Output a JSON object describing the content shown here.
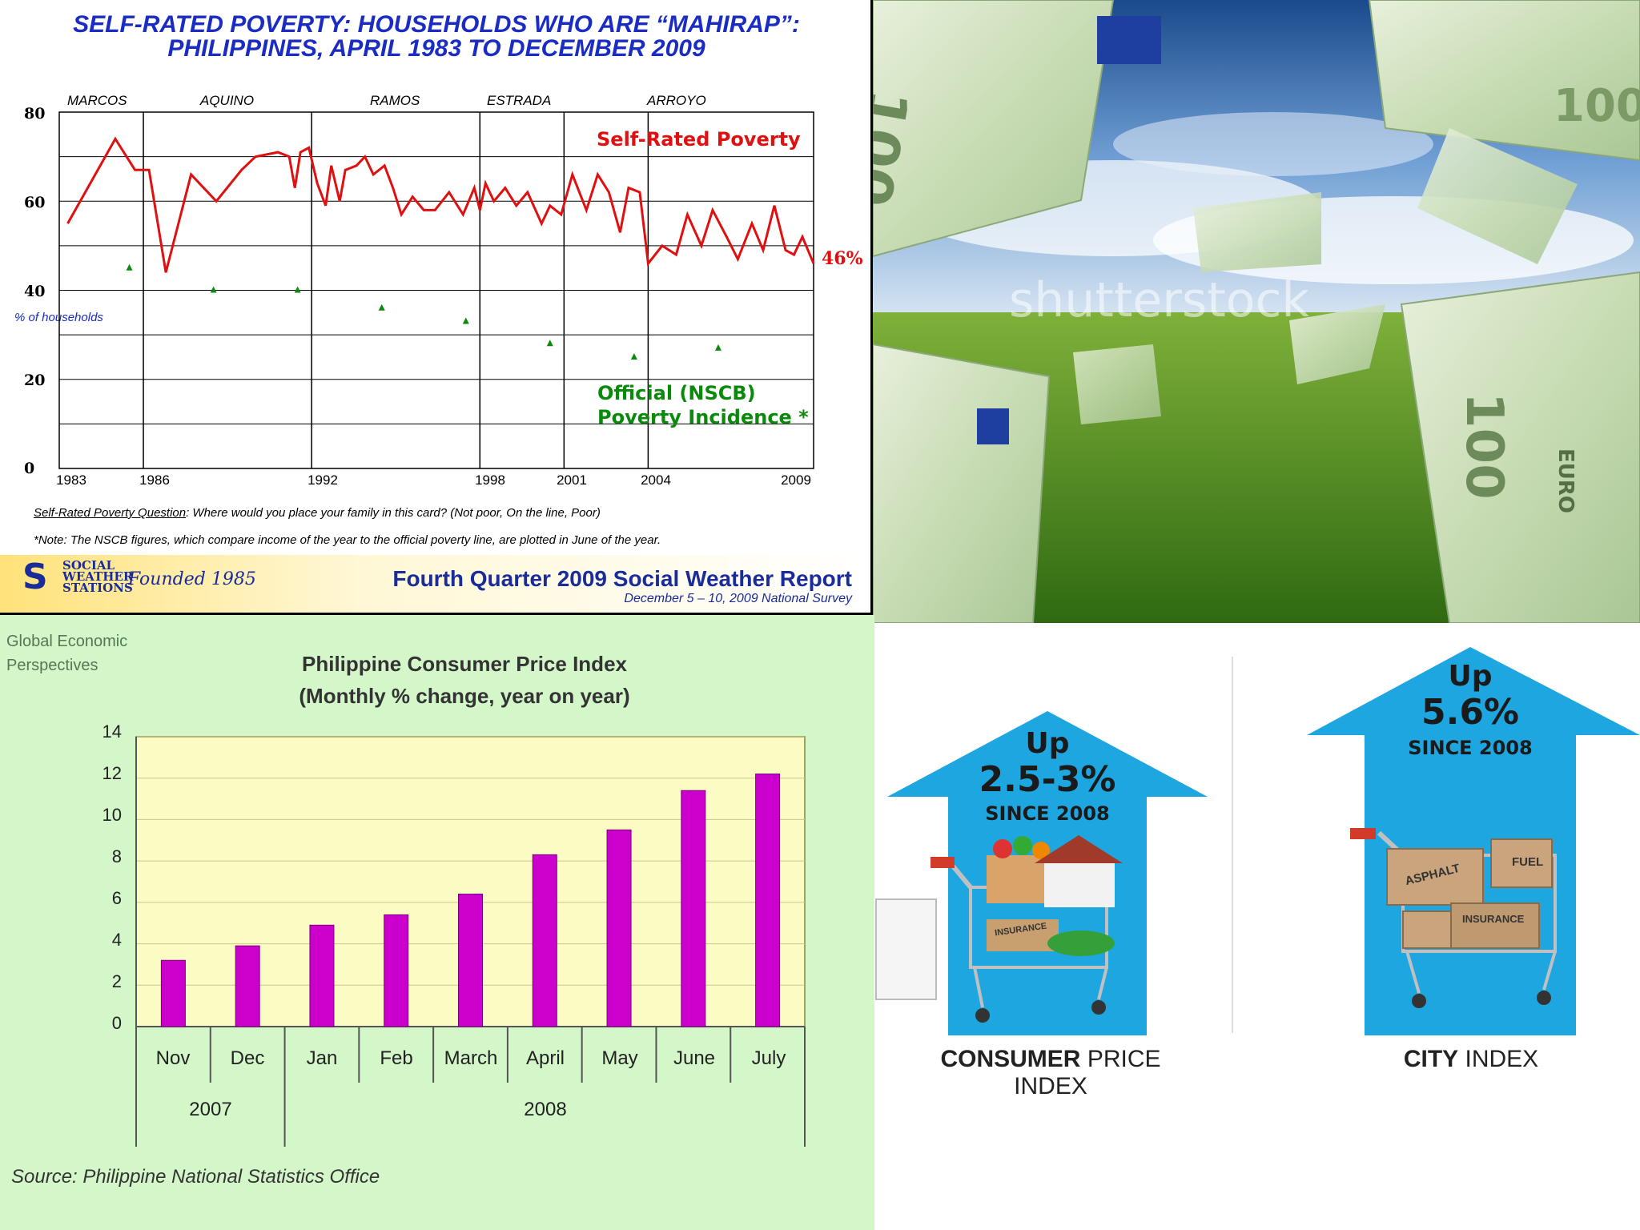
{
  "panel1": {
    "title_line1": "SELF-RATED POVERTY: HOUSEHOLDS WHO ARE “MAHIRAP”:",
    "title_line2": "PHILIPPINES, APRIL 1983 TO DECEMBER 2009",
    "eras": [
      "MARCOS",
      "AQUINO",
      "RAMOS",
      "ESTRADA",
      "ARROYO"
    ],
    "y_ticks": [
      "80",
      "60",
      "40",
      "20",
      "0"
    ],
    "x_ticks": [
      "1983",
      "1986",
      "1992",
      "1998",
      "2001",
      "2004",
      "2009"
    ],
    "ylabel": "% of households",
    "series_label_red": "Self-Rated Poverty",
    "end_value": "46%",
    "series_label_green_1": "Official (NSCB)",
    "series_label_green_2": "Poverty Incidence *",
    "question_label": "Self-Rated Poverty Question",
    "question_text": ":  Where would you place your family in this card?  (Not poor, On the line, Poor)",
    "note": "*Note:  The NSCB figures, which compare income of the year to the official poverty line, are plotted in June of the year.",
    "org_line1": "SOCIAL",
    "org_line2": "WEATHER",
    "org_line3": "STATIONS",
    "founded": "Founded 1985",
    "report_title": "Fourth Quarter 2009 Social Weather Report",
    "report_sub": "December 5 – 10, 2009 National Survey",
    "colors": {
      "red": "#e01010",
      "green": "#0a8a0a",
      "blue": "#1a2cc4"
    }
  },
  "chart_data": [
    {
      "type": "line",
      "title": "SELF-RATED POVERTY: HOUSEHOLDS WHO ARE “MAHIRAP”: PHILIPPINES, APRIL 1983 TO DECEMBER 2009",
      "ylabel": "% of households",
      "ylim": [
        0,
        80
      ],
      "xlim": [
        1983,
        2010
      ],
      "series": [
        {
          "name": "Self-Rated Poverty",
          "color": "#e01010",
          "x": [
            1983.3,
            1985.0,
            1985.7,
            1986.2,
            1986.8,
            1987.7,
            1988.6,
            1989.5,
            1990.0,
            1990.8,
            1991.2,
            1991.4,
            1991.6,
            1991.9,
            1992.2,
            1992.5,
            1992.7,
            1993.0,
            1993.2,
            1993.6,
            1993.9,
            1994.2,
            1994.6,
            1994.9,
            1995.2,
            1995.6,
            1996.0,
            1996.4,
            1996.9,
            1997.4,
            1997.8,
            1998.0,
            1998.2,
            1998.5,
            1998.9,
            1999.3,
            1999.7,
            2000.2,
            2000.5,
            2000.9,
            2001.3,
            2001.8,
            2002.2,
            2002.6,
            2003.0,
            2003.3,
            2003.7,
            2004.0,
            2004.5,
            2005.0,
            2005.4,
            2005.9,
            2006.3,
            2006.8,
            2007.2,
            2007.7,
            2008.1,
            2008.5,
            2008.9,
            2009.2,
            2009.5,
            2009.9
          ],
          "y": [
            55,
            74,
            67,
            67,
            44,
            66,
            60,
            67,
            70,
            71,
            70,
            63,
            71,
            72,
            64,
            59,
            68,
            60,
            67,
            68,
            70,
            66,
            68,
            63,
            57,
            61,
            58,
            58,
            62,
            57,
            63,
            58,
            64,
            60,
            63,
            59,
            62,
            55,
            59,
            57,
            66,
            58,
            66,
            62,
            53,
            63,
            62,
            46,
            50,
            48,
            57,
            50,
            58,
            52,
            47,
            55,
            49,
            59,
            49,
            48,
            52,
            46
          ]
        },
        {
          "name": "Official (NSCB) Poverty Incidence *",
          "color": "#0a8a0a",
          "x": [
            1985.5,
            1988.5,
            1991.5,
            1994.5,
            1997.5,
            2000.5,
            2003.5,
            2006.5
          ],
          "y": [
            45,
            40,
            40,
            36,
            33,
            28,
            25,
            27
          ]
        }
      ]
    },
    {
      "type": "bar",
      "title": "Philippine Consumer Price Index",
      "subtitle": "(Monthly % change, year on year)",
      "categories": [
        "Nov",
        "Dec",
        "Jan",
        "Feb",
        "March",
        "April",
        "May",
        "June",
        "July"
      ],
      "groups": [
        {
          "label": "2007",
          "span": 2
        },
        {
          "label": "2008",
          "span": 7
        }
      ],
      "values": [
        3.2,
        3.9,
        4.9,
        5.4,
        6.4,
        8.3,
        9.5,
        11.4,
        12.2
      ],
      "ylim": [
        0,
        14
      ],
      "y_ticks": [
        "14",
        "12",
        "10",
        "8",
        "6",
        "4",
        "2",
        "0"
      ],
      "color": "#cc00cc"
    }
  ],
  "panel3": {
    "corner_label_1": "Global Economic",
    "corner_label_2": "Perspectives",
    "source": "Source:  Philippine National  Statistics Office"
  },
  "panel2": {
    "watermark": "shutterstock",
    "note_text": "100",
    "euro_text": "EURO"
  },
  "panel4": {
    "left_up": "Up",
    "left_pct": "2.5-3%",
    "left_since": "SINCE 2008",
    "left_label_bold": "CONSUMER",
    "left_label_rest": " PRICE INDEX",
    "right_up": "Up",
    "right_pct": "5.6%",
    "right_since": "SINCE 2008",
    "right_label_bold": "CITY",
    "right_label_rest": " INDEX",
    "box_labels": [
      "ASPHALT",
      "FUEL",
      "INSURANCE"
    ],
    "left_box_label": "INSURANCE",
    "arrow_color": "#1ea6e0"
  }
}
